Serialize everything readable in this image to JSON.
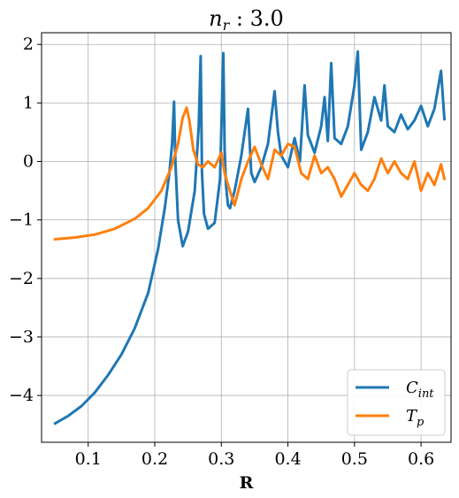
{
  "chart_data": {
    "type": "line",
    "title": "n_r : 3.0",
    "xlabel": "R",
    "ylabel": "",
    "xlim": [
      0.03,
      0.645
    ],
    "ylim": [
      -4.8,
      2.2
    ],
    "xticks": [
      0.1,
      0.2,
      0.3,
      0.4,
      0.5,
      0.6
    ],
    "xtick_labels": [
      "0.1",
      "0.2",
      "0.3",
      "0.4",
      "0.5",
      "0.6"
    ],
    "yticks": [
      -4,
      -3,
      -2,
      -1,
      0,
      1,
      2
    ],
    "ytick_labels": [
      "−4",
      "−3",
      "−2",
      "−1",
      "0",
      "1",
      "2"
    ],
    "grid": true,
    "legend_position": "lower-right",
    "series": [
      {
        "name": "C_int",
        "color": "#1f77b4",
        "x": [
          0.05,
          0.07,
          0.09,
          0.11,
          0.13,
          0.15,
          0.17,
          0.19,
          0.205,
          0.215,
          0.222,
          0.226,
          0.229,
          0.231,
          0.235,
          0.242,
          0.25,
          0.26,
          0.266,
          0.269,
          0.271,
          0.274,
          0.28,
          0.29,
          0.298,
          0.303,
          0.305,
          0.307,
          0.31,
          0.313,
          0.32,
          0.33,
          0.34,
          0.345,
          0.35,
          0.36,
          0.37,
          0.38,
          0.385,
          0.39,
          0.4,
          0.41,
          0.418,
          0.425,
          0.43,
          0.44,
          0.45,
          0.455,
          0.46,
          0.465,
          0.47,
          0.48,
          0.49,
          0.5,
          0.505,
          0.51,
          0.52,
          0.53,
          0.54,
          0.545,
          0.55,
          0.56,
          0.57,
          0.58,
          0.59,
          0.6,
          0.61,
          0.62,
          0.63,
          0.635
        ],
        "y": [
          -4.48,
          -4.35,
          -4.18,
          -3.95,
          -3.65,
          -3.3,
          -2.85,
          -2.25,
          -1.5,
          -0.8,
          -0.2,
          0.3,
          1.02,
          0.0,
          -1.0,
          -1.45,
          -1.2,
          -0.5,
          0.6,
          1.8,
          -0.2,
          -0.9,
          -1.15,
          -1.05,
          -0.3,
          1.85,
          0.2,
          -0.4,
          -0.75,
          -0.8,
          -0.5,
          0.1,
          0.9,
          -0.2,
          -0.35,
          -0.1,
          0.3,
          1.2,
          0.5,
          0.1,
          -0.1,
          0.4,
          0.0,
          1.3,
          0.45,
          0.15,
          0.6,
          1.1,
          0.35,
          1.68,
          0.4,
          0.3,
          0.6,
          1.3,
          1.88,
          0.2,
          0.5,
          1.1,
          0.7,
          1.3,
          0.6,
          0.5,
          0.8,
          0.55,
          0.7,
          0.95,
          0.6,
          0.9,
          1.55,
          0.72
        ]
      },
      {
        "name": "T_p",
        "color": "#ff7f0e",
        "x": [
          0.05,
          0.08,
          0.11,
          0.14,
          0.17,
          0.19,
          0.21,
          0.225,
          0.235,
          0.242,
          0.248,
          0.252,
          0.258,
          0.265,
          0.272,
          0.28,
          0.29,
          0.3,
          0.305,
          0.31,
          0.32,
          0.33,
          0.34,
          0.35,
          0.36,
          0.37,
          0.38,
          0.39,
          0.4,
          0.41,
          0.42,
          0.43,
          0.44,
          0.45,
          0.46,
          0.47,
          0.48,
          0.49,
          0.5,
          0.51,
          0.52,
          0.53,
          0.54,
          0.55,
          0.56,
          0.57,
          0.58,
          0.59,
          0.6,
          0.61,
          0.62,
          0.63,
          0.635
        ],
        "y": [
          -1.33,
          -1.3,
          -1.25,
          -1.15,
          -0.98,
          -0.8,
          -0.5,
          -0.1,
          0.3,
          0.75,
          0.92,
          0.7,
          0.2,
          -0.05,
          -0.1,
          0.0,
          -0.1,
          0.15,
          -0.2,
          -0.4,
          -0.75,
          -0.3,
          0.0,
          0.25,
          -0.05,
          -0.3,
          0.2,
          0.1,
          0.3,
          0.25,
          -0.2,
          -0.3,
          0.1,
          -0.2,
          -0.1,
          -0.3,
          -0.6,
          -0.4,
          -0.2,
          -0.4,
          -0.5,
          -0.3,
          0.05,
          -0.2,
          0.0,
          -0.2,
          -0.3,
          0.0,
          -0.5,
          -0.2,
          -0.4,
          -0.05,
          -0.3
        ]
      }
    ]
  }
}
